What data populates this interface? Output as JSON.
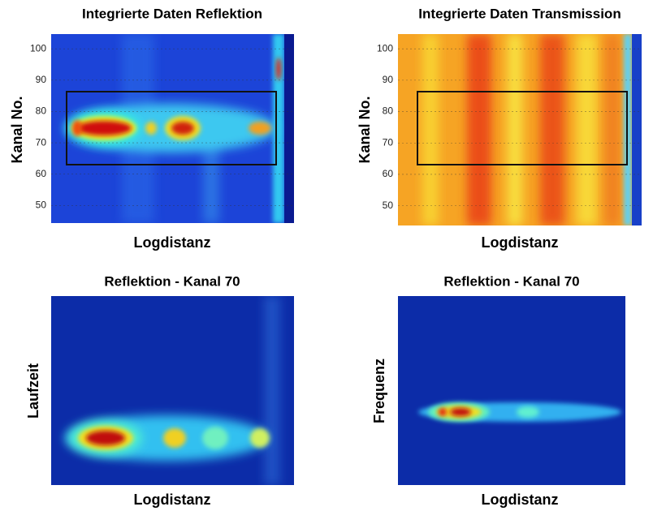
{
  "panels": [
    {
      "title": "Integrierte Daten Reflektion",
      "xlabel": "Logdistanz",
      "ylabel": "Kanal No.",
      "ylim": [
        44.4,
        104.7
      ],
      "yticks": [
        50,
        60,
        70,
        80,
        90,
        100
      ]
    },
    {
      "title": "Integrierte Daten Transmission",
      "xlabel": "Logdistanz",
      "ylabel": "Kanal No.",
      "ylim": [
        43.7,
        104.7
      ],
      "yticks": [
        50,
        60,
        70,
        80,
        90,
        100
      ]
    },
    {
      "title": "Reflektion - Kanal 70",
      "xlabel": "Logdistanz",
      "ylabel": "Laufzeit"
    },
    {
      "title": "Reflektion - Kanal 70",
      "xlabel": "Logdistanz",
      "ylabel": "Frequenz"
    }
  ]
}
